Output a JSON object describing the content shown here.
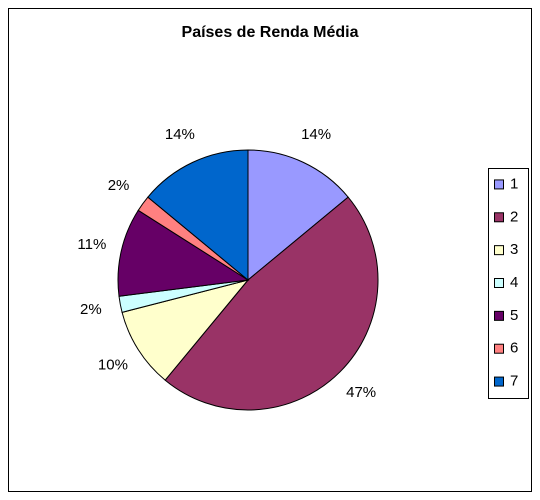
{
  "chart_data": {
    "type": "pie",
    "title": "Países de Renda Média",
    "categories": [
      "1",
      "2",
      "3",
      "4",
      "5",
      "6",
      "7"
    ],
    "values": [
      14,
      47,
      10,
      2,
      11,
      2,
      14
    ],
    "value_labels": [
      "14%",
      "47%",
      "10%",
      "2%",
      "11%",
      "2%",
      "14%"
    ],
    "colors": [
      "#9999ff",
      "#993366",
      "#ffffcc",
      "#ccffff",
      "#660066",
      "#ff8080",
      "#0066cc"
    ],
    "legend": "right"
  }
}
